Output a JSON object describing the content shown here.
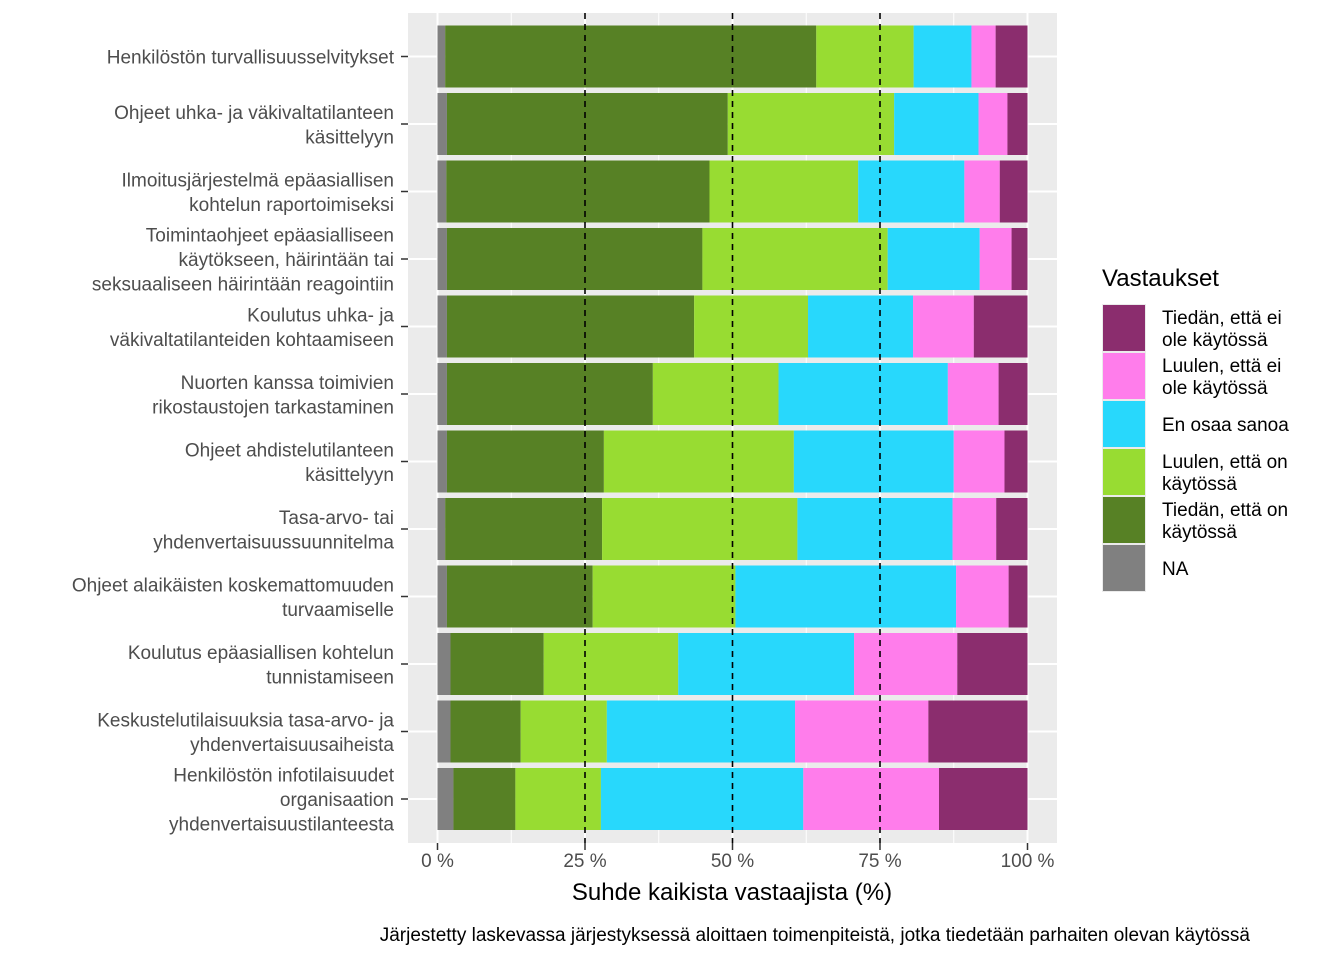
{
  "chart_data": {
    "type": "bar",
    "orientation": "horizontal",
    "stacked": true,
    "xlabel": "Suhde kaikista vastaajista (%)",
    "caption": "Järjestetty laskevassa järjestyksessä aloittaen toimenpiteistä, jotka tiedetään parhaiten olevan käytössä",
    "xlim": [
      0,
      100
    ],
    "ticks": [
      "0 %",
      "25 %",
      "50 %",
      "75 %",
      "100 %"
    ],
    "tick_values": [
      0,
      25,
      50,
      75,
      100
    ],
    "reference_lines": [
      25,
      50,
      75
    ],
    "legend": {
      "title": "Vastaukset",
      "position": "right",
      "entries": [
        {
          "key": "tiedan_ei",
          "label": [
            "Tiedän, että ei",
            "ole käytössä"
          ],
          "color": "#8b2d6e"
        },
        {
          "key": "luulen_ei",
          "label": [
            "Luulen, että ei",
            "ole käytössä"
          ],
          "color": "#ff7deb"
        },
        {
          "key": "en_osaa",
          "label": [
            "En osaa sanoa"
          ],
          "color": "#28d8fc"
        },
        {
          "key": "luulen_on",
          "label": [
            "Luulen, että on",
            "käytössä"
          ],
          "color": "#98dc32"
        },
        {
          "key": "tiedan_on",
          "label": [
            "Tiedän, että on",
            "käytössä"
          ],
          "color": "#578125"
        },
        {
          "key": "na",
          "label": [
            "NA"
          ],
          "color": "#808080"
        }
      ]
    },
    "stack_order": [
      "na",
      "tiedan_on",
      "luulen_on",
      "en_osaa",
      "luulen_ei",
      "tiedan_ei"
    ],
    "categories": [
      {
        "label": [
          "Henkilöstön turvallisuusselvitykset"
        ],
        "values": {
          "na": 1.3,
          "tiedan_on": 62.9,
          "luulen_on": 16.5,
          "en_osaa": 9.8,
          "luulen_ei": 4.1,
          "tiedan_ei": 5.4
        }
      },
      {
        "label": [
          "Ohjeet uhka- ja väkivaltatilanteen",
          "käsittelyyn"
        ],
        "values": {
          "na": 1.6,
          "tiedan_on": 47.6,
          "luulen_on": 28.2,
          "en_osaa": 14.3,
          "luulen_ei": 4.9,
          "tiedan_ei": 3.4
        }
      },
      {
        "label": [
          "Ilmoitusjärjestelmä epäasiallisen",
          "kohtelun raportoimiseksi"
        ],
        "values": {
          "na": 1.5,
          "tiedan_on": 44.6,
          "luulen_on": 25.2,
          "en_osaa": 18.0,
          "luulen_ei": 6.0,
          "tiedan_ei": 4.7
        }
      },
      {
        "label": [
          "Toimintaohjeet epäasialliseen",
          "käytökseen, häirintään tai",
          "seksuaaliseen häirintään reagointiin"
        ],
        "values": {
          "na": 1.6,
          "tiedan_on": 43.3,
          "luulen_on": 31.4,
          "en_osaa": 15.6,
          "luulen_ei": 5.4,
          "tiedan_ei": 2.7
        }
      },
      {
        "label": [
          "Koulutus uhka- ja",
          "väkivaltatilanteiden kohtaamiseen"
        ],
        "values": {
          "na": 1.6,
          "tiedan_on": 41.9,
          "luulen_on": 19.3,
          "en_osaa": 17.8,
          "luulen_ei": 10.3,
          "tiedan_ei": 9.1
        }
      },
      {
        "label": [
          "Nuorten kanssa toimivien",
          "rikostaustojen tarkastaminen"
        ],
        "values": {
          "na": 1.6,
          "tiedan_on": 34.9,
          "luulen_on": 21.3,
          "en_osaa": 28.7,
          "luulen_ei": 8.6,
          "tiedan_ei": 4.9
        }
      },
      {
        "label": [
          "Ohjeet ahdistelutilanteen",
          "käsittelyyn"
        ],
        "values": {
          "na": 1.6,
          "tiedan_on": 26.6,
          "luulen_on": 32.2,
          "en_osaa": 27.1,
          "luulen_ei": 8.6,
          "tiedan_ei": 3.9
        }
      },
      {
        "label": [
          "Tasa-arvo- tai",
          "yhdenvertaisuussuunnitelma"
        ],
        "values": {
          "na": 1.3,
          "tiedan_on": 26.6,
          "luulen_on": 33.1,
          "en_osaa": 26.3,
          "luulen_ei": 7.4,
          "tiedan_ei": 5.3
        }
      },
      {
        "label": [
          "Ohjeet alaikäisten koskemattomuuden",
          "turvaamiselle"
        ],
        "values": {
          "na": 1.6,
          "tiedan_on": 24.7,
          "luulen_on": 24.2,
          "en_osaa": 37.4,
          "luulen_ei": 8.9,
          "tiedan_ei": 3.2
        }
      },
      {
        "label": [
          "Koulutus epäasiallisen kohtelun",
          "tunnistamiseen"
        ],
        "values": {
          "na": 2.2,
          "tiedan_on": 15.8,
          "luulen_on": 22.8,
          "en_osaa": 29.8,
          "luulen_ei": 17.5,
          "tiedan_ei": 11.9
        }
      },
      {
        "label": [
          "Keskustelutilaisuuksia tasa-arvo- ja",
          "yhdenvertaisuusaiheista"
        ],
        "values": {
          "na": 2.2,
          "tiedan_on": 11.9,
          "luulen_on": 14.6,
          "en_osaa": 31.9,
          "luulen_ei": 22.6,
          "tiedan_ei": 16.8
        }
      },
      {
        "label": [
          "Henkilöstön infotilaisuudet",
          "organisaation",
          "yhdenvertaisuustilanteesta"
        ],
        "values": {
          "na": 2.7,
          "tiedan_on": 10.5,
          "luulen_on": 14.5,
          "en_osaa": 34.3,
          "luulen_ei": 23.0,
          "tiedan_ei": 15.0
        }
      }
    ]
  }
}
